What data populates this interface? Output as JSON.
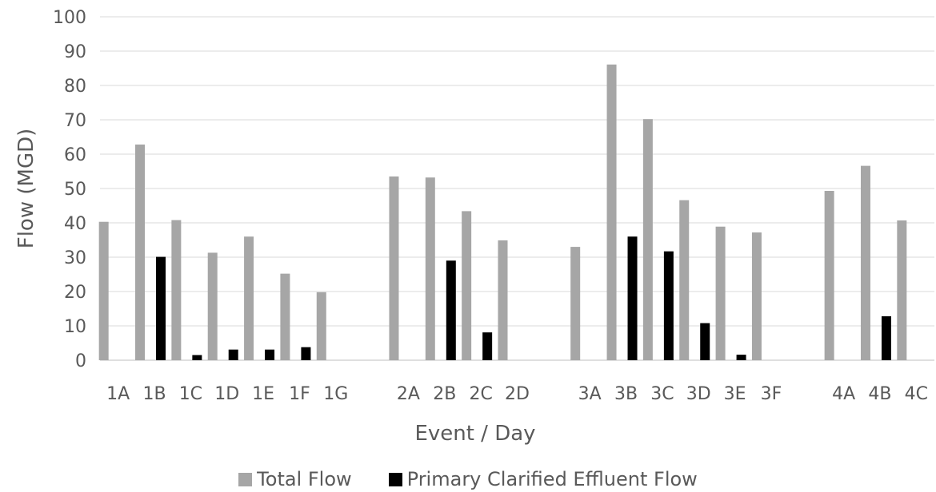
{
  "chart_data": {
    "type": "bar",
    "title": "",
    "xlabel": "Event / Day",
    "ylabel": "Flow (MGD)",
    "ylim": [
      0,
      100
    ],
    "yticks": [
      0,
      10,
      20,
      30,
      40,
      50,
      60,
      70,
      80,
      90,
      100
    ],
    "grid": true,
    "legend_position": "bottom",
    "groups": [
      [
        "1A",
        "1B",
        "1C",
        "1D",
        "1E",
        "1F",
        "1G"
      ],
      [
        "2A",
        "2B",
        "2C",
        "2D"
      ],
      [
        "3A",
        "3B",
        "3C",
        "3D",
        "3E",
        "3F"
      ],
      [
        "4A",
        "4B",
        "4C"
      ]
    ],
    "categories": [
      "1A",
      "1B",
      "1C",
      "1D",
      "1E",
      "1F",
      "1G",
      "2A",
      "2B",
      "2C",
      "2D",
      "3A",
      "3B",
      "3C",
      "3D",
      "3E",
      "3F",
      "4A",
      "4B",
      "4C"
    ],
    "series": [
      {
        "name": "Total Flow",
        "color": "#a6a6a6",
        "values": [
          40.3,
          62.8,
          40.8,
          31.3,
          36,
          25.2,
          19.8,
          53.5,
          53.2,
          43.4,
          34.9,
          33,
          86.1,
          70.2,
          46.6,
          38.9,
          37.2,
          49.3,
          56.6,
          40.7
        ]
      },
      {
        "name": "Primary Clarified Effluent Flow",
        "color": "#000000",
        "values": [
          null,
          30.1,
          1.5,
          3.1,
          3.1,
          3.8,
          null,
          null,
          29,
          8.1,
          null,
          null,
          36,
          31.7,
          10.8,
          1.6,
          null,
          null,
          12.8,
          null
        ]
      }
    ]
  }
}
